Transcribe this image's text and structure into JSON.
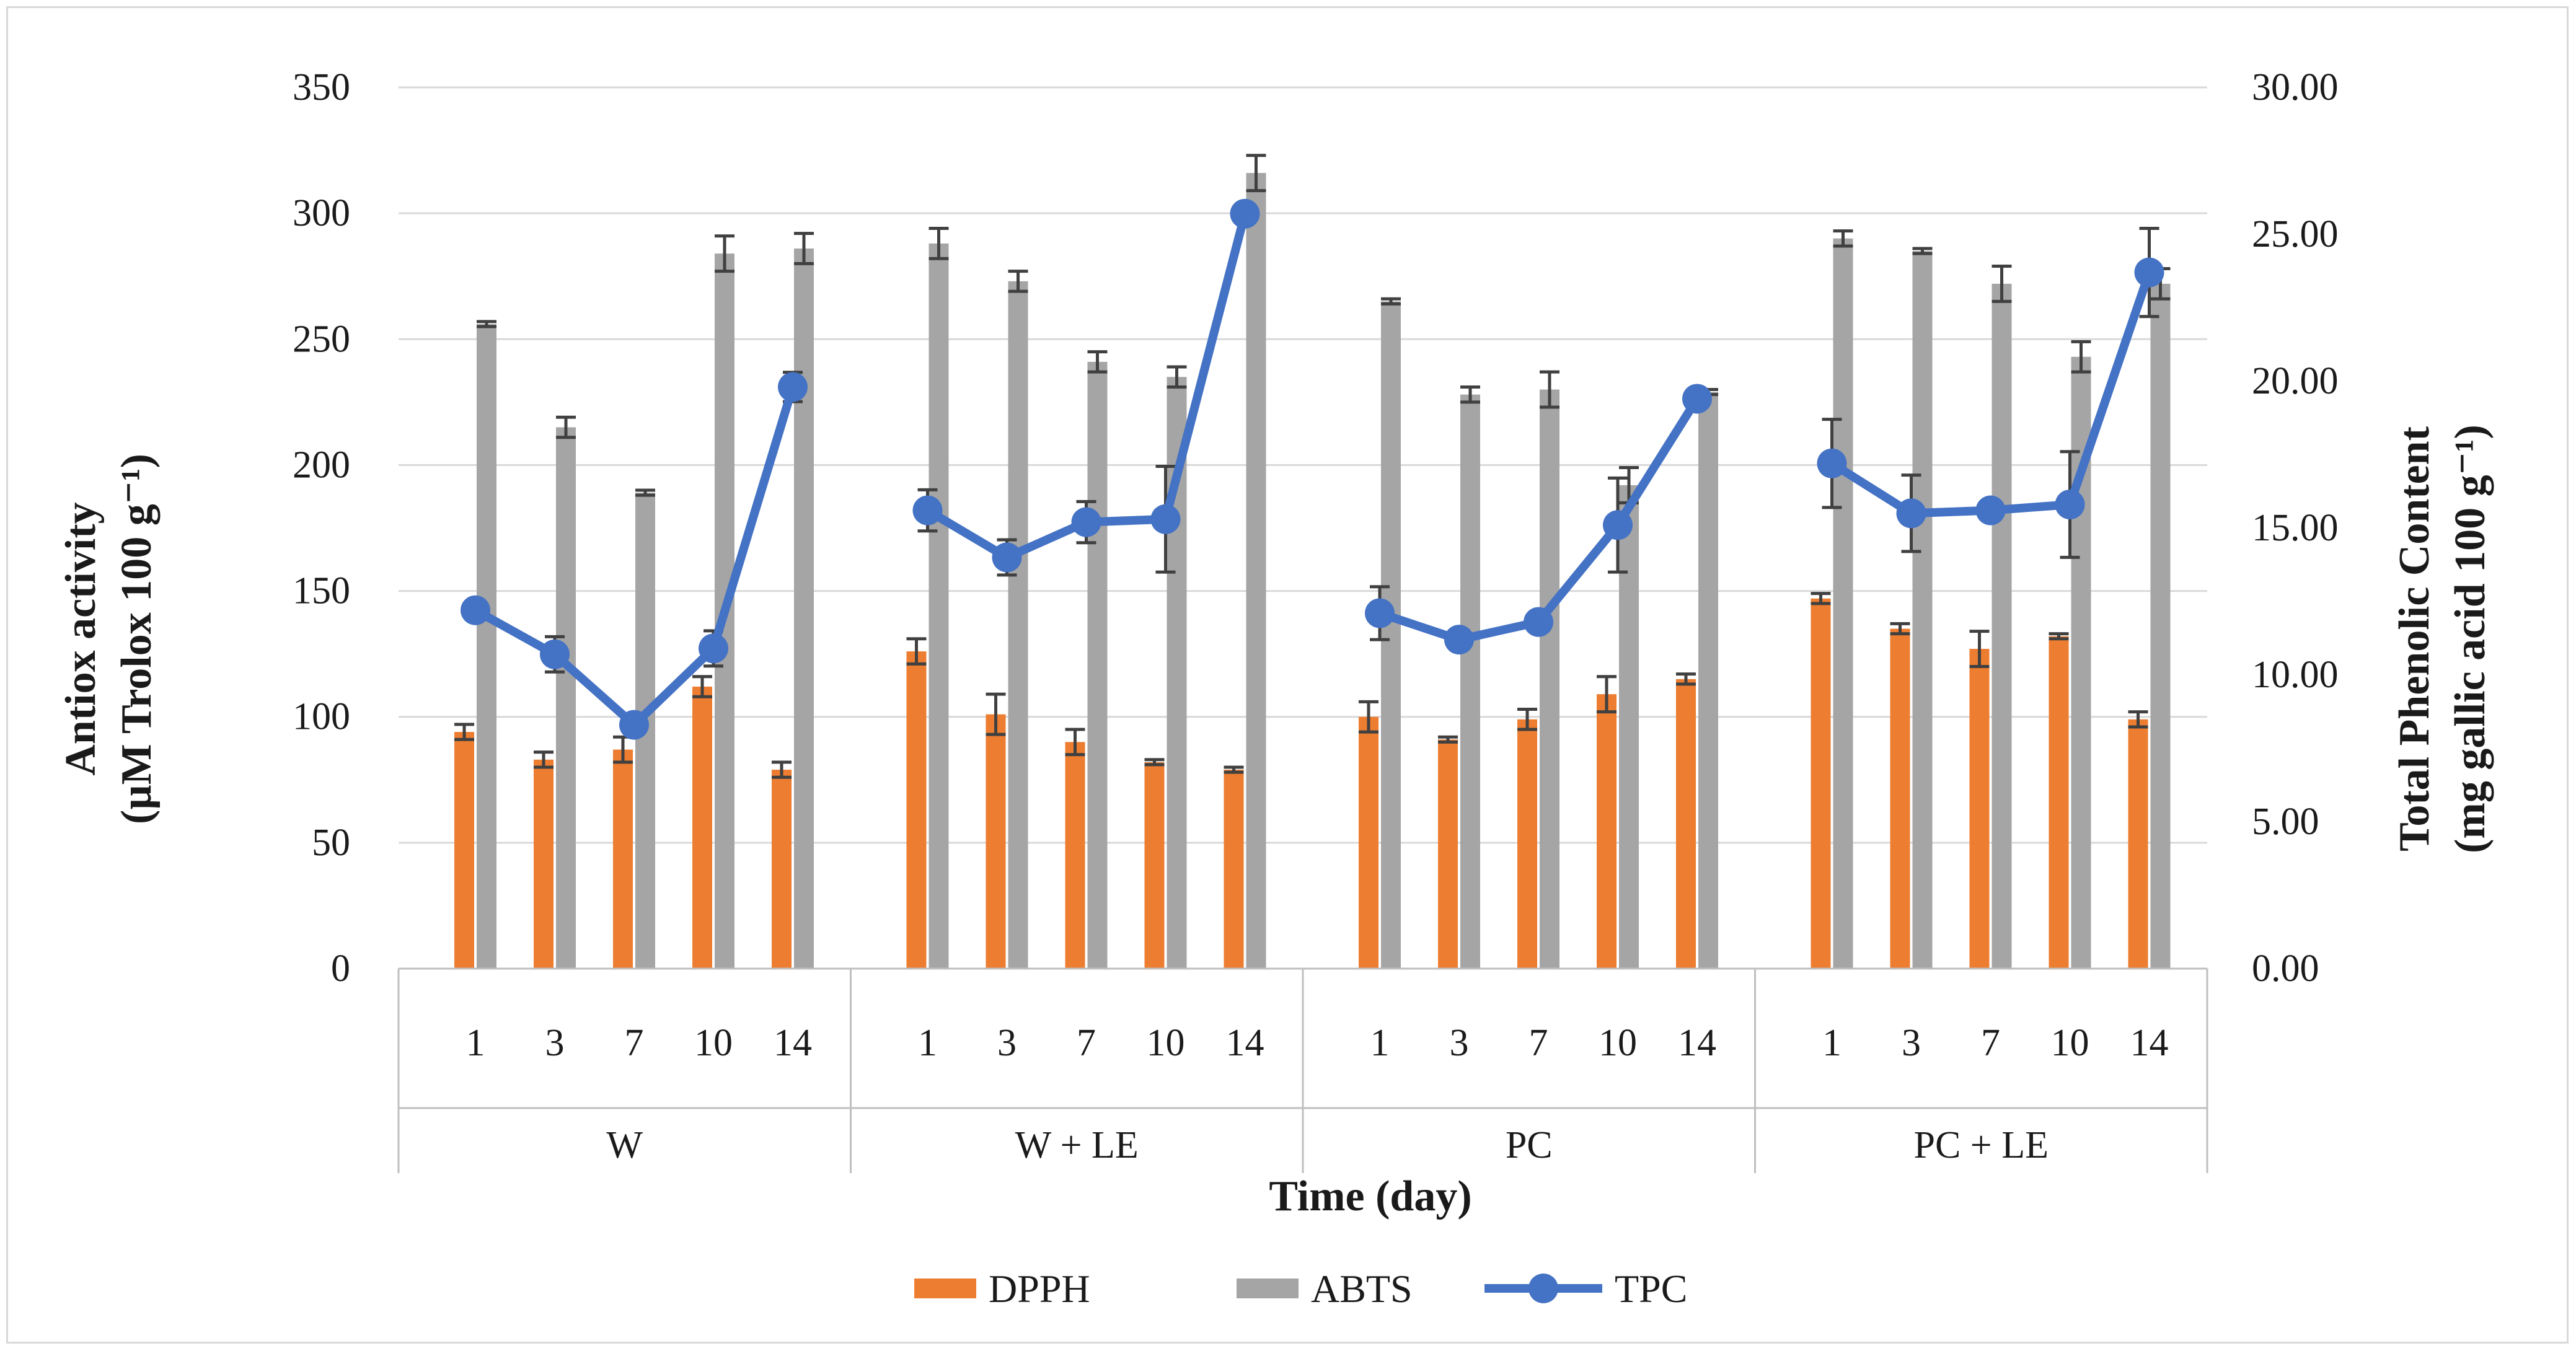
{
  "chart_data": {
    "type": "bar",
    "title": "",
    "xlabel": "Time (day)",
    "ylabel_line1": "Antiox activity",
    "ylabel_line2": "(µM Trolox 100 g⁻¹)",
    "y2label_line1": "Total Phenolic Content",
    "y2label_line2": "(mg gallic acid 100 g⁻¹)",
    "ylim": [
      0,
      350
    ],
    "y_ticks": [
      "0",
      "50",
      "100",
      "150",
      "200",
      "250",
      "300",
      "350"
    ],
    "y2lim": [
      0,
      30
    ],
    "y2_ticks": [
      "0.00",
      "5.00",
      "10.00",
      "15.00",
      "20.00",
      "25.00",
      "30.00"
    ],
    "groups": [
      {
        "name": "W",
        "days": [
          "1",
          "3",
          "7",
          "10",
          "14"
        ]
      },
      {
        "name": "W + LE",
        "days": [
          "1",
          "3",
          "7",
          "10",
          "14"
        ]
      },
      {
        "name": "PC",
        "days": [
          "1",
          "3",
          "7",
          "10",
          "14"
        ]
      },
      {
        "name": "PC + LE",
        "days": [
          "1",
          "3",
          "7",
          "10",
          "14"
        ]
      }
    ],
    "series": [
      {
        "name": "DPPH",
        "kind": "bar",
        "axis": "left",
        "color": "#ED7D31",
        "values": [
          94,
          83,
          87,
          112,
          79,
          126,
          101,
          90,
          82,
          79,
          100,
          91,
          99,
          109,
          115,
          147,
          135,
          127,
          132,
          99
        ],
        "errors": [
          3,
          3,
          5,
          4,
          3,
          5,
          8,
          5,
          1,
          1,
          6,
          1,
          4,
          7,
          2,
          2,
          2,
          7,
          1,
          3
        ]
      },
      {
        "name": "ABTS",
        "kind": "bar",
        "axis": "left",
        "color": "#A5A5A5",
        "values": [
          256,
          215,
          189,
          284,
          286,
          288,
          273,
          241,
          235,
          316,
          265,
          228,
          230,
          192,
          229,
          290,
          285,
          272,
          243,
          272
        ],
        "errors": [
          1,
          4,
          1,
          7,
          6,
          6,
          4,
          4,
          4,
          7,
          1,
          3,
          7,
          7,
          1,
          3,
          1,
          7,
          6,
          6
        ]
      },
      {
        "name": "TPC",
        "kind": "line",
        "axis": "right",
        "color": "#4472C4",
        "values": [
          12.2,
          10.7,
          8.3,
          10.9,
          19.8,
          15.6,
          14.0,
          15.2,
          15.3,
          25.7,
          12.1,
          11.2,
          11.8,
          15.1,
          19.4,
          17.2,
          15.5,
          15.6,
          15.8,
          23.7
        ],
        "errors": [
          0,
          0.6,
          0,
          0.6,
          0.5,
          0.7,
          0.6,
          0.7,
          1.8,
          0,
          0.9,
          0,
          0,
          1.6,
          0,
          1.5,
          1.3,
          0,
          1.8,
          1.5
        ]
      }
    ],
    "legend": [
      "DPPH",
      "ABTS",
      "TPC"
    ],
    "legend_position": "bottom",
    "grid": true
  }
}
